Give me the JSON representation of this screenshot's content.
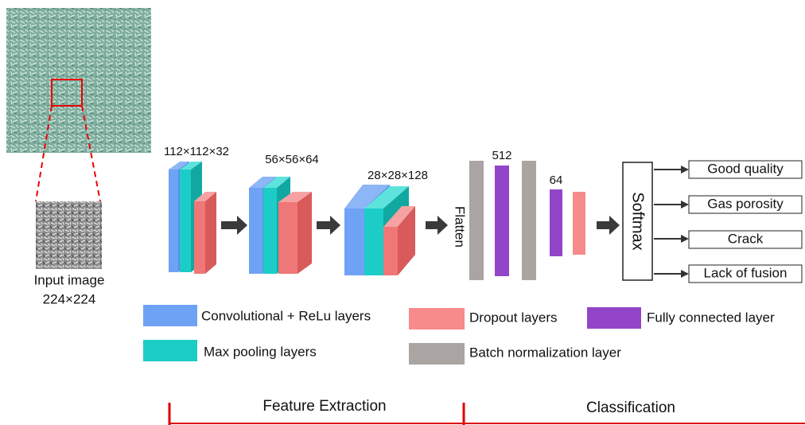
{
  "input": {
    "label": "Input image",
    "size": "224×224"
  },
  "blocks": [
    {
      "label": "112×112×32"
    },
    {
      "label": "56×56×64"
    },
    {
      "label": "28×28×128"
    }
  ],
  "flatten": "Flatten",
  "dense": [
    {
      "label": "512"
    },
    {
      "label": "64"
    }
  ],
  "softmax": "Softmax",
  "outputs": [
    "Good quality",
    "Gas porosity",
    "Crack",
    "Lack of fusion"
  ],
  "legend": [
    "Convolutional + ReLu layers",
    "Dropout layers",
    "Fully connected layer",
    "Max pooling layers",
    "Batch normalization layer"
  ],
  "sections": [
    "Feature Extraction",
    "Classification"
  ]
}
